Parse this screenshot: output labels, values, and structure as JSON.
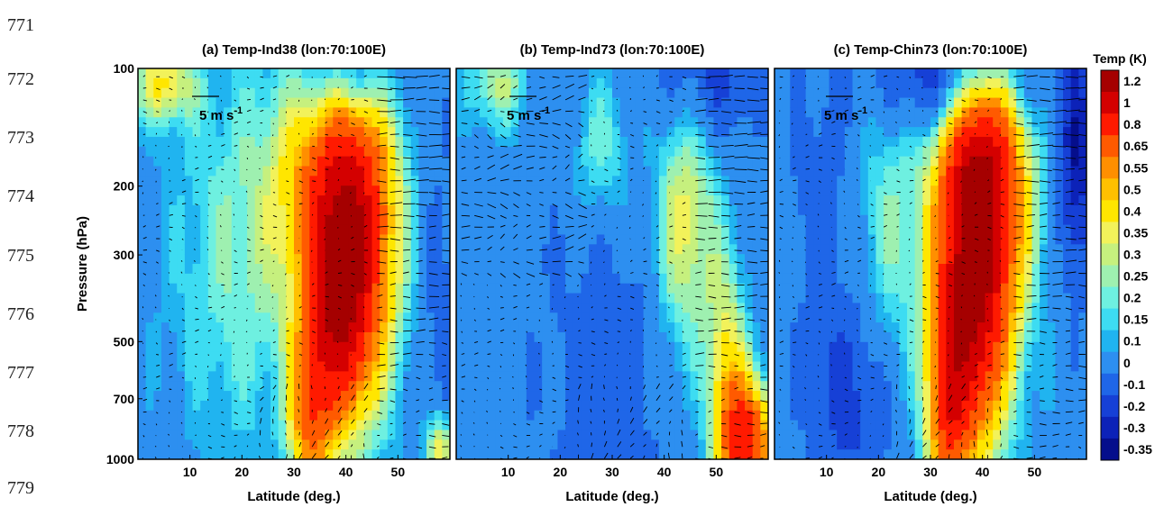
{
  "line_numbers": [
    "771",
    "772",
    "773",
    "774",
    "775",
    "776",
    "777",
    "778",
    "779"
  ],
  "ylabel": "Pressure (hPa)",
  "ref_vector_label": "5 m s",
  "ref_vector_exp": "-1",
  "colorbar": {
    "title": "Temp (K)",
    "labels": [
      "1.2",
      "1",
      "0.8",
      "0.65",
      "0.55",
      "0.5",
      "0.4",
      "0.35",
      "0.3",
      "0.25",
      "0.2",
      "0.15",
      "0.1",
      "0",
      "-0.1",
      "-0.2",
      "-0.3",
      "-0.35"
    ],
    "colors": [
      "#a50000",
      "#d40000",
      "#ff1a00",
      "#ff5a00",
      "#ff8f00",
      "#ffc000",
      "#ffe600",
      "#f2f25a",
      "#c6f07e",
      "#9ef0b0",
      "#6ef0e0",
      "#3ddcf2",
      "#20b4f0",
      "#2d8ff0",
      "#1f66e8",
      "#1640d6",
      "#0c22b8",
      "#050e8c"
    ]
  },
  "chart_data": [
    {
      "type": "heatmap",
      "title": "(a) Temp-Ind38  (lon:70:100E)",
      "xlabel": "Latitude (deg.)",
      "ylabel": "Pressure (hPa)",
      "x_ticks": [
        10,
        20,
        30,
        40,
        50
      ],
      "y_ticks": [
        100,
        200,
        300,
        500,
        700,
        1000
      ],
      "xlim": [
        0,
        60
      ],
      "ylim": [
        1000,
        100
      ],
      "y_scale": "log",
      "overlay": "wind vectors",
      "ref_vector": 5,
      "features": [
        {
          "lat": 42,
          "p": 270,
          "value": 0.8,
          "dlat": 8,
          "dp": 0.42
        },
        {
          "lat": 38,
          "p": 430,
          "value": 0.65,
          "dlat": 6,
          "dp": 0.28
        },
        {
          "lat": 33,
          "p": 800,
          "value": 0.5,
          "dlat": 4,
          "dp": 0.22
        },
        {
          "lat": 36,
          "p": 180,
          "value": 0.4,
          "dlat": 10,
          "dp": 0.3
        },
        {
          "lat": 5,
          "p": 110,
          "value": 0.35,
          "dlat": 6,
          "dp": 0.1
        },
        {
          "lat": 20,
          "p": 300,
          "value": 0.2,
          "dlat": 14,
          "dp": 0.5
        },
        {
          "lat": 40,
          "p": 105,
          "value": -0.35,
          "dlat": 8,
          "dp": 0.15
        },
        {
          "lat": 58,
          "p": 500,
          "value": -0.1,
          "dlat": 4,
          "dp": 0.6
        },
        {
          "lat": 58,
          "p": 950,
          "value": 0.4,
          "dlat": 3,
          "dp": 0.1
        }
      ],
      "base_value": 0.05
    },
    {
      "type": "heatmap",
      "title": "(b) Temp-Ind73  (lon:70:100E)",
      "xlabel": "Latitude (deg.)",
      "ylabel": "",
      "x_ticks": [
        10,
        20,
        30,
        40,
        50
      ],
      "y_ticks": [],
      "xlim": [
        0,
        60
      ],
      "ylim": [
        1000,
        100
      ],
      "y_scale": "log",
      "overlay": "wind vectors",
      "ref_vector": 5,
      "features": [
        {
          "lat": 44,
          "p": 250,
          "value": 0.35,
          "dlat": 6,
          "dp": 0.35
        },
        {
          "lat": 56,
          "p": 900,
          "value": 0.8,
          "dlat": 5,
          "dp": 0.16
        },
        {
          "lat": 52,
          "p": 600,
          "value": 0.35,
          "dlat": 4,
          "dp": 0.3
        },
        {
          "lat": 8,
          "p": 110,
          "value": 0.25,
          "dlat": 6,
          "dp": 0.12
        },
        {
          "lat": 28,
          "p": 160,
          "value": 0.2,
          "dlat": 6,
          "dp": 0.2
        },
        {
          "lat": 30,
          "p": 600,
          "value": -0.1,
          "dlat": 14,
          "dp": 0.6
        },
        {
          "lat": 48,
          "p": 110,
          "value": -0.2,
          "dlat": 10,
          "dp": 0.15
        }
      ],
      "base_value": 0.05
    },
    {
      "type": "heatmap",
      "title": "(c) Temp-Chin73  (lon:70:100E)",
      "xlabel": "Latitude (deg.)",
      "ylabel": "",
      "x_ticks": [
        10,
        20,
        30,
        40,
        50
      ],
      "y_ticks": [],
      "xlim": [
        0,
        60
      ],
      "ylim": [
        1000,
        100
      ],
      "y_scale": "log",
      "overlay": "wind vectors",
      "ref_vector": 5,
      "features": [
        {
          "lat": 40,
          "p": 260,
          "value": 0.8,
          "dlat": 8,
          "dp": 0.45
        },
        {
          "lat": 37,
          "p": 450,
          "value": 0.65,
          "dlat": 6,
          "dp": 0.35
        },
        {
          "lat": 33,
          "p": 800,
          "value": 0.5,
          "dlat": 4,
          "dp": 0.25
        },
        {
          "lat": 40,
          "p": 180,
          "value": 0.45,
          "dlat": 8,
          "dp": 0.25
        },
        {
          "lat": 22,
          "p": 260,
          "value": 0.2,
          "dlat": 8,
          "dp": 0.4
        },
        {
          "lat": 35,
          "p": 105,
          "value": -0.35,
          "dlat": 14,
          "dp": 0.15
        },
        {
          "lat": 10,
          "p": 200,
          "value": -0.1,
          "dlat": 8,
          "dp": 0.35
        },
        {
          "lat": 58,
          "p": 170,
          "value": -0.35,
          "dlat": 3,
          "dp": 0.3
        },
        {
          "lat": 15,
          "p": 700,
          "value": -0.2,
          "dlat": 8,
          "dp": 0.3
        }
      ],
      "base_value": 0.05
    }
  ]
}
